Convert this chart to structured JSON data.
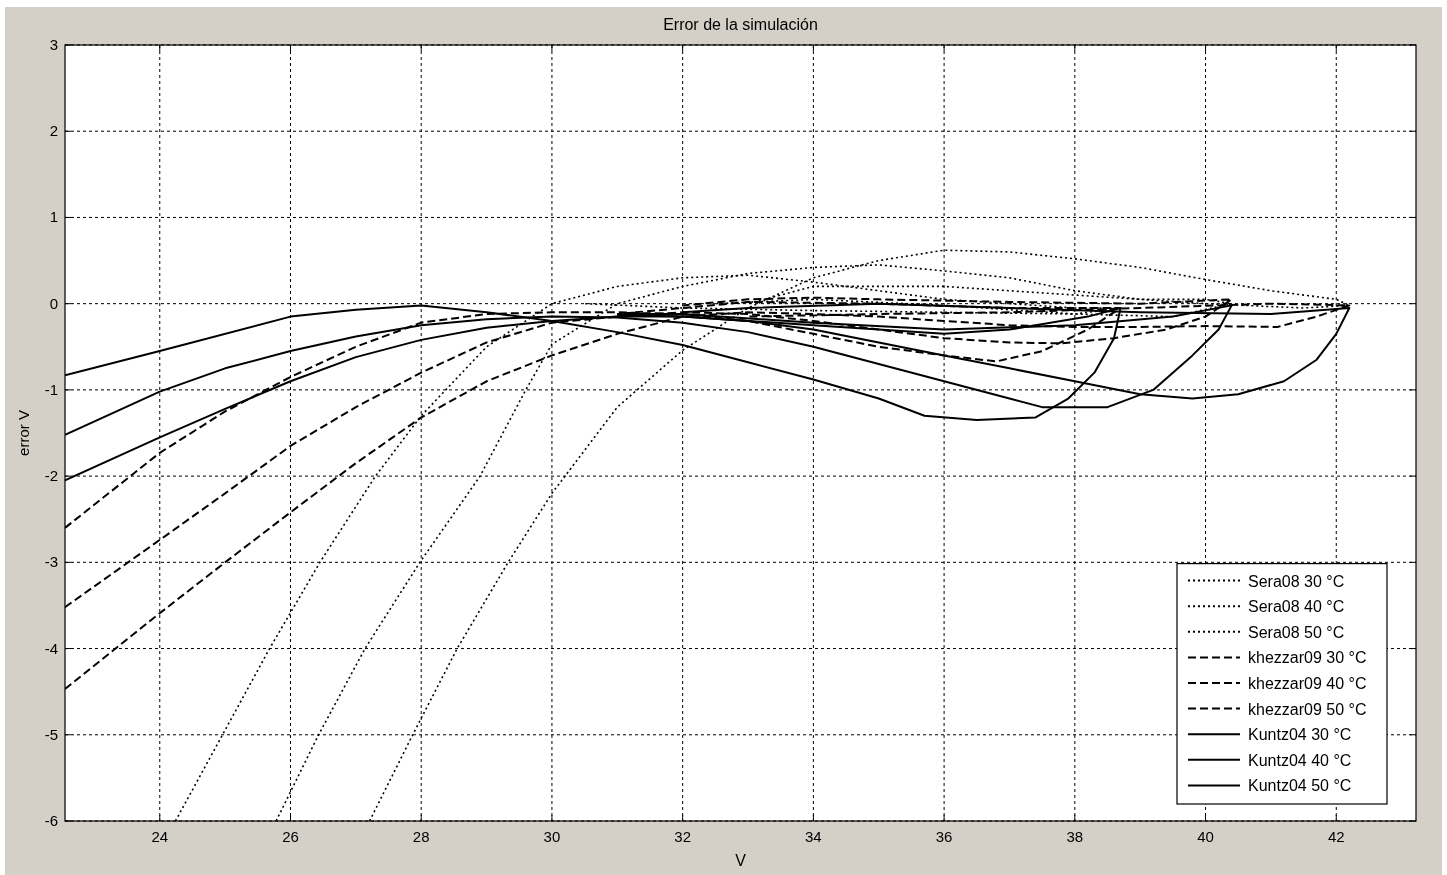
{
  "chart_data": {
    "type": "line",
    "title": "Error de la simulación",
    "xlabel": "V",
    "ylabel": "error V",
    "xlim": [
      22.55,
      43.22
    ],
    "ylim": [
      -6,
      3
    ],
    "xticks": [
      24,
      26,
      28,
      30,
      32,
      34,
      36,
      38,
      40,
      42
    ],
    "yticks": [
      -6,
      -5,
      -4,
      -3,
      -2,
      -1,
      0,
      1,
      2,
      3
    ],
    "grid": true,
    "legend": "bottom right",
    "series": [
      {
        "name": "Sera08 30 °C",
        "color": "#000000",
        "line_style": "dotted",
        "x": [
          24.24,
          24.96,
          25.68,
          26.45,
          27.3,
          28,
          29,
          30,
          31,
          32,
          33,
          34,
          35,
          36,
          37,
          38,
          38.7,
          38,
          36,
          34,
          32,
          30.5
        ],
        "values": [
          -6,
          -5,
          -4,
          -3,
          -2,
          -1.3,
          -0.5,
          0,
          0.2,
          0.3,
          0.33,
          0.25,
          0.15,
          0.05,
          0,
          -0.05,
          -0.05,
          -0.12,
          -0.1,
          -0.08,
          -0.05,
          0
        ]
      },
      {
        "name": "Sera08 40 °C",
        "color": "#000000",
        "line_style": "dotted",
        "x": [
          25.78,
          26.43,
          27.14,
          27.98,
          28.9,
          29.6,
          30,
          31,
          32,
          33,
          34,
          35,
          36,
          37,
          38,
          39,
          40,
          40.4,
          39.5,
          38,
          36,
          34,
          32.5
        ],
        "values": [
          -6,
          -5,
          -4,
          -3,
          -2,
          -1,
          -0.47,
          0,
          0.2,
          0.35,
          0.42,
          0.45,
          0.38,
          0.3,
          0.15,
          0.05,
          0.05,
          0,
          -0.15,
          -0.12,
          -0.02,
          0.05,
          0
        ]
      },
      {
        "name": "Sera08 50 °C",
        "color": "#000000",
        "line_style": "dotted",
        "x": [
          27.21,
          27.87,
          28.55,
          29.33,
          30,
          31,
          32,
          33,
          34,
          35,
          36,
          37,
          38,
          39,
          40,
          41,
          42,
          42.2,
          41.5,
          40,
          38,
          36,
          34,
          33
        ],
        "values": [
          -6,
          -5,
          -4,
          -3,
          -2.2,
          -1.2,
          -0.54,
          -0.05,
          0.3,
          0.5,
          0.62,
          0.6,
          0.52,
          0.42,
          0.28,
          0.15,
          0.05,
          -0.02,
          -0.05,
          0,
          0.1,
          0.2,
          0.2,
          0
        ]
      },
      {
        "name": "khezzar09 30 °C",
        "color": "#000000",
        "line_style": "dashed",
        "x": [
          22.55,
          24,
          25,
          26,
          27,
          28,
          29,
          30,
          31,
          32,
          33,
          34,
          35,
          36,
          36.8,
          37.5,
          38.2,
          38.7,
          37,
          35,
          33,
          32,
          31
        ],
        "values": [
          -2.6,
          -1.73,
          -1.25,
          -0.85,
          -0.5,
          -0.22,
          -0.12,
          -0.1,
          -0.1,
          -0.12,
          -0.2,
          -0.35,
          -0.5,
          -0.6,
          -0.67,
          -0.55,
          -0.3,
          -0.05,
          -0.05,
          0,
          0.02,
          -0.05,
          -0.12
        ]
      },
      {
        "name": "khezzar09 40 °C",
        "color": "#000000",
        "line_style": "dashed",
        "x": [
          22.55,
          24,
          25,
          26,
          27,
          28,
          29,
          30,
          31,
          32,
          33,
          34,
          35,
          36,
          37,
          37.8,
          38.6,
          39.4,
          40,
          40.4,
          39,
          37,
          35,
          34,
          33,
          32
        ],
        "values": [
          -3.52,
          -2.74,
          -2.2,
          -1.65,
          -1.2,
          -0.8,
          -0.45,
          -0.22,
          -0.15,
          -0.1,
          -0.12,
          -0.2,
          -0.3,
          -0.4,
          -0.45,
          -0.46,
          -0.4,
          -0.3,
          -0.15,
          0.05,
          0,
          0.02,
          0.05,
          0.07,
          0.05,
          -0.02
        ]
      },
      {
        "name": "khezzar09 50 °C",
        "color": "#000000",
        "line_style": "dashed",
        "x": [
          22.55,
          24,
          25,
          26,
          27,
          28,
          29,
          30,
          31,
          32,
          33,
          34,
          35,
          36,
          37,
          38,
          39,
          40,
          41.1,
          41.7,
          42.2,
          41,
          39,
          37,
          35,
          33
        ],
        "values": [
          -4.47,
          -3.59,
          -3,
          -2.42,
          -1.85,
          -1.32,
          -0.9,
          -0.6,
          -0.35,
          -0.15,
          -0.1,
          -0.12,
          -0.15,
          -0.2,
          -0.25,
          -0.27,
          -0.27,
          -0.26,
          -0.27,
          -0.15,
          -0.02,
          0,
          -0.05,
          -0.1,
          -0.12,
          -0.15
        ]
      },
      {
        "name": "Kuntz04 30 °C",
        "color": "#000000",
        "line_style": "solid",
        "x": [
          22.55,
          24,
          26,
          27,
          28,
          29,
          30,
          31,
          32,
          33,
          34,
          35,
          35.7,
          36.5,
          37.4,
          37.9,
          38.3,
          38.6,
          38.7,
          38.2,
          37,
          36,
          35,
          34,
          33,
          32,
          31
        ],
        "values": [
          -0.83,
          -0.55,
          -0.15,
          -0.07,
          -0.02,
          -0.1,
          -0.2,
          -0.33,
          -0.48,
          -0.68,
          -0.88,
          -1.1,
          -1.3,
          -1.35,
          -1.32,
          -1.1,
          -0.8,
          -0.4,
          -0.05,
          -0.15,
          -0.3,
          -0.35,
          -0.3,
          -0.25,
          -0.2,
          -0.15,
          -0.13
        ]
      },
      {
        "name": "Kuntz04 40 °C",
        "color": "#000000",
        "line_style": "solid",
        "x": [
          22.55,
          24,
          25,
          26,
          27,
          28,
          29,
          30,
          31,
          32,
          33,
          34,
          35,
          36,
          37,
          37.5,
          38.5,
          39.2,
          39.8,
          40.2,
          40.4,
          39.5,
          38,
          36,
          34,
          32,
          31
        ],
        "values": [
          -1.52,
          -1.02,
          -0.75,
          -0.55,
          -0.38,
          -0.25,
          -0.18,
          -0.15,
          -0.16,
          -0.22,
          -0.33,
          -0.5,
          -0.7,
          -0.9,
          -1.1,
          -1.2,
          -1.2,
          -1,
          -0.6,
          -0.3,
          -0.02,
          -0.15,
          -0.25,
          -0.3,
          -0.22,
          -0.12,
          -0.12
        ]
      },
      {
        "name": "Kuntz04 50 °C",
        "color": "#000000",
        "line_style": "solid",
        "x": [
          22.55,
          24,
          25,
          26,
          27,
          28,
          29,
          30,
          31,
          32,
          33,
          34,
          35,
          36,
          37,
          38,
          39,
          39.8,
          40.5,
          41.2,
          41.7,
          42,
          42.2,
          41,
          39,
          37,
          35,
          33,
          32
        ],
        "values": [
          -2.05,
          -1.55,
          -1.22,
          -0.9,
          -0.62,
          -0.42,
          -0.28,
          -0.2,
          -0.15,
          -0.15,
          -0.2,
          -0.3,
          -0.45,
          -0.6,
          -0.75,
          -0.9,
          -1.05,
          -1.1,
          -1.05,
          -0.9,
          -0.65,
          -0.35,
          -0.05,
          -0.12,
          -0.1,
          -0.05,
          0,
          -0.05,
          -0.1
        ]
      }
    ]
  }
}
